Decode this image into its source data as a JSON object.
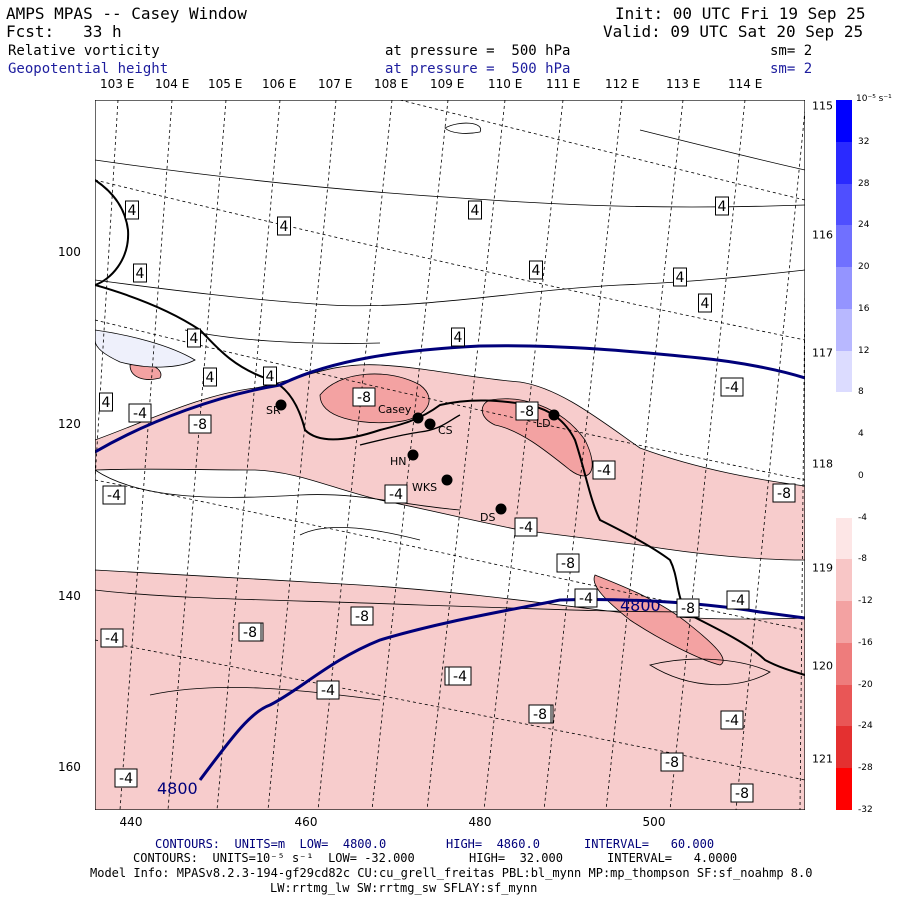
{
  "header": {
    "title": "AMPS MPAS -- Casey Window",
    "fcst": "Fcst:   33 h",
    "init": "Init: 00 UTC Fri 19 Sep 25",
    "valid": "Valid: 09 UTC Sat 20 Sep 25",
    "field1_name": "Relative vorticity",
    "field1_level": "at pressure =  500 hPa",
    "field1_sm": "sm= 2",
    "field2_name": "Geopotential height",
    "field2_level": "at pressure =  500 hPa",
    "field2_sm": "sm= 2"
  },
  "top_longitudes": [
    "103 E",
    "104 E",
    "105 E",
    "106 E",
    "107 E",
    "108 E",
    "109 E",
    "110 E",
    "111 E",
    "112 E",
    "113 E",
    "114 E"
  ],
  "right_longitudes": [
    "115 E",
    "116 E",
    "117 E",
    "118 E",
    "119 E",
    "120 E",
    "121 E"
  ],
  "x_ticks": [
    "440",
    "460",
    "480",
    "500"
  ],
  "y_ticks": [
    "100",
    "120",
    "140",
    "160"
  ],
  "colorbar": {
    "unit": "10⁻⁵ s⁻¹",
    "ticks": [
      "32",
      "28",
      "24",
      "20",
      "16",
      "12",
      "8",
      "4",
      "0",
      "-4",
      "-8",
      "-12",
      "-16",
      "-20",
      "-24",
      "-28",
      "-32"
    ],
    "colors": [
      "#0000ff",
      "#2a2aff",
      "#4f4fff",
      "#7070ff",
      "#9494ff",
      "#b8b8ff",
      "#dcdcff",
      "#ffffff",
      "#ffffff",
      "#ffffff",
      "#fde6e6",
      "#f8c6c6",
      "#f3a2a2",
      "#ee7c7c",
      "#e95656",
      "#e43030",
      "#ff0000"
    ]
  },
  "stations": [
    {
      "name": "SR"
    },
    {
      "name": "Casey"
    },
    {
      "name": "CS"
    },
    {
      "name": "HN"
    },
    {
      "name": "WKS"
    },
    {
      "name": "DS"
    },
    {
      "name": "LD"
    }
  ],
  "contour_labels": {
    "vorticity": [
      "4",
      "4",
      "4",
      "4",
      "4",
      "4",
      "4",
      "4",
      "4",
      "4",
      "4",
      "4",
      "-4",
      "4",
      "-8",
      "-4",
      "-8",
      "-8",
      "-4",
      "-4",
      "-4",
      "-8",
      "-4",
      "-8",
      "-4",
      "-8",
      "-4",
      "-8",
      "-8",
      "-8",
      "-4",
      "-4",
      "-8",
      "-8",
      "-4",
      "-4",
      "-8",
      "-8",
      "-4",
      "-8"
    ],
    "height": [
      "4800",
      "4800"
    ]
  },
  "footer": {
    "line1_a": "CONTOURS:  UNITS=m  LOW=  4800.0",
    "line1_b": "HIGH=  4860.0",
    "line1_c": "INTERVAL=   60.000",
    "line2_a": "CONTOURS:  UNITS=10⁻⁵ s⁻¹  LOW= -32.000",
    "line2_b": "HIGH=  32.000",
    "line2_c": "INTERVAL=   4.0000",
    "model_info": "Model Info: MPASv8.2.3-194-gf29cd82c CU:cu_grell_freitas PBL:bl_mynn MP:mp_thompson SF:sf_noahmp 8.0",
    "model_info2": "LW:rrtmg_lw SW:rrtmg_sw SFLAY:sf_mynn"
  },
  "colors": {
    "height_contour": "#00007a",
    "coastline": "#000000",
    "positive_vort": "#f7cccc",
    "negative_vort": "#cfd4f5"
  }
}
